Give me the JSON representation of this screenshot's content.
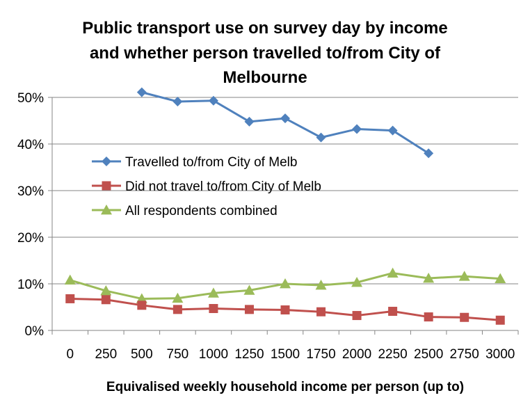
{
  "chart_data": {
    "type": "line",
    "title_lines": [
      "Public transport use on survey day by income",
      "and whether person travelled to/from City of",
      "Melbourne"
    ],
    "xlabel": "Equivalised weekly household income per person (up to)",
    "ylabel": "",
    "categories": [
      "0",
      "250",
      "500",
      "750",
      "1000",
      "1250",
      "1500",
      "1750",
      "2000",
      "2250",
      "2500",
      "2750",
      "3000"
    ],
    "ylim": [
      0,
      0.5
    ],
    "yticks": [
      "0%",
      "10%",
      "20%",
      "30%",
      "40%",
      "50%"
    ],
    "grid": true,
    "legend_position": "center-left",
    "series": [
      {
        "name": "Travelled to/from City of Melb",
        "color": "#4F81BD",
        "marker": "diamond",
        "values": [
          null,
          null,
          0.511,
          0.491,
          0.493,
          0.448,
          0.455,
          0.414,
          0.432,
          0.429,
          0.38,
          null,
          null
        ]
      },
      {
        "name": "Did not travel to/from City of Melb",
        "color": "#C0504D",
        "marker": "square",
        "values": [
          0.068,
          0.066,
          0.054,
          0.045,
          0.047,
          0.045,
          0.044,
          0.04,
          0.032,
          0.041,
          0.029,
          0.028,
          0.022
        ]
      },
      {
        "name": "All respondents combined",
        "color": "#9BBB59",
        "marker": "triangle",
        "values": [
          0.108,
          0.085,
          0.068,
          0.069,
          0.08,
          0.086,
          0.1,
          0.097,
          0.103,
          0.123,
          0.112,
          0.116,
          0.111
        ]
      }
    ]
  }
}
